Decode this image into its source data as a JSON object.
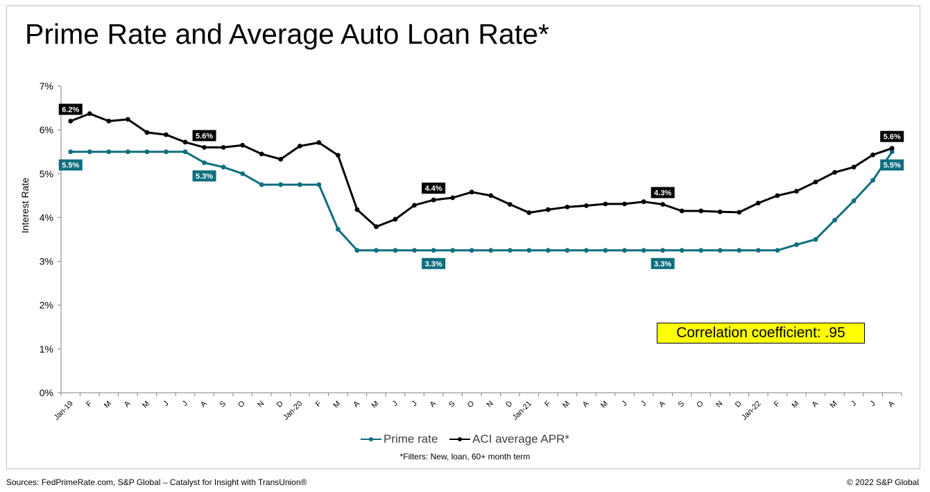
{
  "title": "Prime Rate and Average Auto Loan Rate*",
  "correlation_note": "Correlation coefficient: .95",
  "footnote": "*Filters: New, loan, 60+ month term",
  "source": "Sources: FedPrimeRate.com, S&P Global – Catalyst for Insight with TransUnion®",
  "copyright": "© 2022 S&P Global",
  "colors": {
    "prime": "#0e6e7e",
    "apr": "#000000",
    "highlight": "#ffff00"
  },
  "chart_data": {
    "type": "line",
    "title": "Prime Rate and Average Auto Loan Rate*",
    "xlabel": "",
    "ylabel": "Interest Rate",
    "ylim": [
      0,
      7
    ],
    "yticks": [
      "0%",
      "1%",
      "2%",
      "3%",
      "4%",
      "5%",
      "6%",
      "7%"
    ],
    "grid": false,
    "legend_position": "bottom",
    "categories": [
      "Jan-19",
      "F",
      "M",
      "A",
      "M",
      "J",
      "J",
      "A",
      "S",
      "O",
      "N",
      "D",
      "Jan-20",
      "F",
      "M",
      "A",
      "M",
      "J",
      "J",
      "A",
      "S",
      "O",
      "N",
      "D",
      "Jan-21",
      "F",
      "M",
      "A",
      "M",
      "J",
      "J",
      "A",
      "S",
      "O",
      "N",
      "D",
      "Jan-22",
      "F",
      "M",
      "A",
      "M",
      "J",
      "J",
      "A"
    ],
    "series": [
      {
        "name": "Prime rate",
        "color": "#0e6e7e",
        "values": [
          5.5,
          5.5,
          5.5,
          5.5,
          5.5,
          5.5,
          5.5,
          5.25,
          5.15,
          5.0,
          4.75,
          4.75,
          4.75,
          4.75,
          3.73,
          3.25,
          3.25,
          3.25,
          3.25,
          3.25,
          3.25,
          3.25,
          3.25,
          3.25,
          3.25,
          3.25,
          3.25,
          3.25,
          3.25,
          3.25,
          3.25,
          3.25,
          3.25,
          3.25,
          3.25,
          3.25,
          3.25,
          3.25,
          3.38,
          3.5,
          3.94,
          4.38,
          4.85,
          5.5
        ],
        "labels": [
          {
            "index": 0,
            "text": "5.5%"
          },
          {
            "index": 7,
            "text": "5.3%"
          },
          {
            "index": 19,
            "text": "3.3%"
          },
          {
            "index": 31,
            "text": "3.3%"
          },
          {
            "index": 43,
            "text": "5.5%"
          }
        ]
      },
      {
        "name": "ACI average APR*",
        "color": "#000000",
        "values": [
          6.2,
          6.37,
          6.2,
          6.24,
          5.94,
          5.89,
          5.72,
          5.6,
          5.6,
          5.65,
          5.45,
          5.33,
          5.63,
          5.71,
          5.42,
          4.18,
          3.79,
          3.96,
          4.28,
          4.4,
          4.45,
          4.58,
          4.5,
          4.3,
          4.11,
          4.18,
          4.24,
          4.27,
          4.31,
          4.31,
          4.36,
          4.3,
          4.15,
          4.15,
          4.13,
          4.12,
          4.33,
          4.5,
          4.6,
          4.81,
          5.03,
          5.15,
          5.43,
          5.58
        ],
        "labels": [
          {
            "index": 0,
            "text": "6.2%"
          },
          {
            "index": 7,
            "text": "5.6%"
          },
          {
            "index": 19,
            "text": "4.4%"
          },
          {
            "index": 31,
            "text": "4.3%"
          },
          {
            "index": 43,
            "text": "5.6%"
          }
        ]
      }
    ]
  }
}
